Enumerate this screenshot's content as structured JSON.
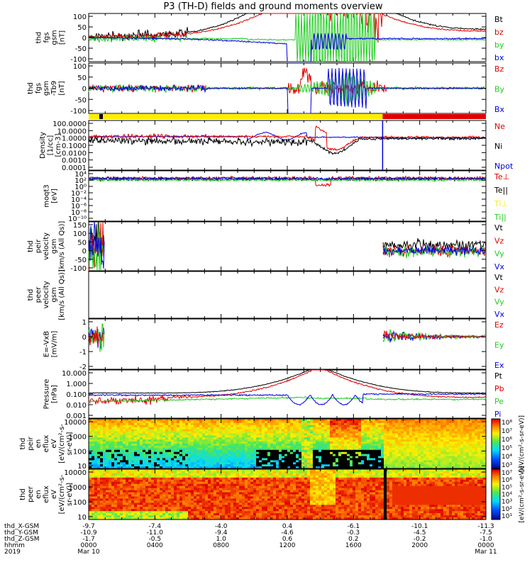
{
  "title": "P3 (TH-D) fields and ground moments overview",
  "colors": {
    "black": "#000000",
    "red": "#e00000",
    "green": "#22cc22",
    "blue": "#0000dd",
    "yellow": "#ffee00"
  },
  "chart_data": [
    {
      "type": "line",
      "id": "p1",
      "ylabel": [
        "thd",
        "fgs",
        "gsm",
        "[nT]"
      ],
      "yticks": [
        "100",
        "50",
        "0",
        "-50",
        "-100"
      ],
      "ylim": [
        -100,
        100
      ],
      "series": [
        {
          "name": "Bt",
          "color": "black"
        },
        {
          "name": "bz",
          "color": "red"
        },
        {
          "name": "by",
          "color": "green"
        },
        {
          "name": "bx",
          "color": "blue"
        }
      ]
    },
    {
      "type": "line",
      "id": "p2",
      "ylabel": [
        "thd",
        "fgs",
        "gsm",
        "-Tb9",
        "[nT]"
      ],
      "yticks": [
        "100",
        "50",
        "0",
        "-50",
        "-100"
      ],
      "ylim": [
        -125,
        100
      ],
      "series": [
        {
          "name": "Bz",
          "color": "red"
        },
        {
          "name": "By",
          "color": "green"
        },
        {
          "name": "Bx",
          "color": "blue"
        }
      ]
    },
    {
      "type": "bar",
      "id": "mode",
      "segments": [
        {
          "start": 0,
          "end": 0.74,
          "color": "yellow"
        },
        {
          "start": 0.74,
          "end": 1,
          "color": "red"
        }
      ]
    },
    {
      "type": "line",
      "id": "p3",
      "ylabel": [
        "Density",
        "[1/cc]",
        "[cm-3]"
      ],
      "yticks": [
        "100.0000",
        "10.0000",
        "1.0000",
        "0.1000",
        "0.0100",
        "0.0010",
        "0.0001"
      ],
      "scale": "log",
      "series": [
        {
          "name": "Ne",
          "color": "red"
        },
        {
          "name": "Ni",
          "color": "black"
        },
        {
          "name": "Npot",
          "color": "blue"
        }
      ]
    },
    {
      "type": "line",
      "id": "p4",
      "ylabel": [
        "moqt3",
        "[eV]"
      ],
      "yticks": [
        "10⁴",
        "10²",
        "10⁰",
        "10⁻²",
        "10⁻⁴",
        "10⁻⁶",
        "10⁻⁸",
        "10⁻¹⁰"
      ],
      "scale": "log",
      "series": [
        {
          "name": "Te⊥",
          "color": "red"
        },
        {
          "name": "Te||",
          "color": "black"
        },
        {
          "name": "Ti⊥",
          "color": "yellow"
        },
        {
          "name": "Ti||",
          "color": "green"
        }
      ]
    },
    {
      "type": "line",
      "id": "p5",
      "ylabel": [
        "thd",
        "peir",
        "velocity",
        "gsm",
        "[km/s (All Qs)]"
      ],
      "yticks": [
        "150",
        "100",
        "50",
        "0",
        "-50",
        "-100"
      ],
      "ylim": [
        -100,
        150
      ],
      "series": [
        {
          "name": "Vt",
          "color": "black"
        },
        {
          "name": "Vz",
          "color": "red"
        },
        {
          "name": "Vy",
          "color": "green"
        },
        {
          "name": "Vx",
          "color": "blue"
        }
      ]
    },
    {
      "type": "line",
      "id": "p6",
      "ylabel": [
        "thd",
        "peer",
        "velocity",
        "gsm",
        "[km/s (All Qs)]"
      ],
      "yticks": [],
      "series": [
        {
          "name": "Vt",
          "color": "black"
        },
        {
          "name": "Vz",
          "color": "red"
        },
        {
          "name": "Vy",
          "color": "green"
        },
        {
          "name": "Vx",
          "color": "blue"
        }
      ]
    },
    {
      "type": "line",
      "id": "p7",
      "ylabel": [
        "E=-VxB",
        "[mV/m]"
      ],
      "yticks": [
        "1",
        "0",
        "-1",
        "-2"
      ],
      "ylim": [
        -2,
        1.5
      ],
      "series": [
        {
          "name": "Ez",
          "color": "red"
        },
        {
          "name": "Ey",
          "color": "green"
        },
        {
          "name": "Ex",
          "color": "blue"
        }
      ]
    },
    {
      "type": "line",
      "id": "p8",
      "ylabel": [
        "Pressure",
        "[nPa]"
      ],
      "yticks": [
        "10.000",
        "1.000",
        "0.100",
        "0.010",
        "0.001"
      ],
      "scale": "log",
      "series": [
        {
          "name": "Pt",
          "color": "black"
        },
        {
          "name": "Pb",
          "color": "red"
        },
        {
          "name": "Pe",
          "color": "green"
        },
        {
          "name": "Pi",
          "color": "blue"
        }
      ]
    },
    {
      "type": "heatmap",
      "id": "p9",
      "ylabel": [
        "thd",
        "peir",
        "en",
        "eflux",
        "eV",
        "[eV/(cm²-s-",
        "sr-eV)]"
      ],
      "yticks": [
        "10000",
        "1000",
        "100",
        "10"
      ],
      "colorbar": {
        "ticks": [
          "10⁸",
          "10⁷",
          "10⁶",
          "10⁵",
          "10⁴",
          "10³"
        ],
        "label": "[eV/(cm²-s-sr-eV)]"
      }
    },
    {
      "type": "heatmap",
      "id": "p10",
      "ylabel": [
        "thd",
        "peer",
        "en",
        "eflux",
        "eV",
        "[eV/(cm²-s-",
        "sr-eV)]"
      ],
      "yticks": [
        "10000",
        "1000",
        "100",
        "10"
      ],
      "colorbar": {
        "ticks": [
          "10⁷",
          "10⁶",
          "10⁵",
          "10⁴",
          "10³",
          "10²",
          "10¹"
        ],
        "label": "[eV/(cm²-s-sr-eV)]"
      }
    }
  ],
  "x_axis": {
    "rows": [
      {
        "label": "thd_X-GSM",
        "values": [
          "-9.7",
          "-7.4",
          "-4.0",
          "0.4",
          "-6.1",
          "-10.1",
          "-11.3"
        ]
      },
      {
        "label": "thd_Y-GSM",
        "values": [
          "-10.9",
          "-11.0",
          "-9.4",
          "-4.6",
          "-0.3",
          "-4.5",
          "-7.5"
        ]
      },
      {
        "label": "thd_Z-GSM",
        "values": [
          "-1.7",
          "-0.5",
          "1.0",
          "0.6",
          "0.2",
          "-0.2",
          "-1.0"
        ]
      },
      {
        "label": "hhmm",
        "values": [
          "0000",
          "0400",
          "0800",
          "1200",
          "1600",
          "2000",
          "0000"
        ]
      }
    ],
    "year": "2019",
    "date_start": "Mar 10",
    "date_end": "Mar 11"
  }
}
